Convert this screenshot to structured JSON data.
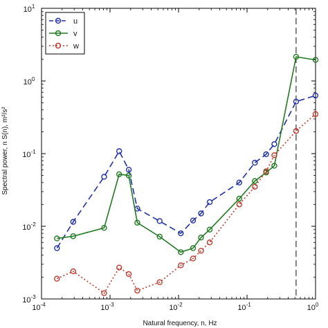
{
  "chart_data": {
    "type": "line",
    "title": "",
    "xlabel": "Natural frequency, n, Hz",
    "ylabel": "Spectral power, n S(n), m²/s²",
    "xscale": "log",
    "yscale": "log",
    "xlim": [
      0.0001,
      1
    ],
    "ylim": [
      0.001,
      10
    ],
    "x_ticks": [
      {
        "base": "10",
        "exp": "-4",
        "value": 0.0001
      },
      {
        "base": "10",
        "exp": "-3",
        "value": 0.001
      },
      {
        "base": "10",
        "exp": "-2",
        "value": 0.01
      },
      {
        "base": "10",
        "exp": "-1",
        "value": 0.1
      },
      {
        "base": "10",
        "exp": "0",
        "value": 1
      }
    ],
    "y_ticks": [
      {
        "base": "10",
        "exp": "-3",
        "value": 0.001
      },
      {
        "base": "10",
        "exp": "-2",
        "value": 0.01
      },
      {
        "base": "10",
        "exp": "-1",
        "value": 0.1
      },
      {
        "base": "10",
        "exp": "0",
        "value": 1
      },
      {
        "base": "10",
        "exp": "1",
        "value": 10
      }
    ],
    "grid": false,
    "legend_position": "top-left",
    "vertical_reference_line": {
      "x": 0.52,
      "style": "dashed",
      "color": "#444444"
    },
    "series": [
      {
        "name": "u",
        "color": "#1f2fa8",
        "line_style": "dashed",
        "marker": "circle",
        "x": [
          0.000168,
          0.00029,
          0.00082,
          0.00136,
          0.00188,
          0.0025,
          0.0053,
          0.0108,
          0.0163,
          0.0213,
          0.0285,
          0.077,
          0.13,
          0.19,
          0.25,
          0.52,
          1.0
        ],
        "y": [
          0.005,
          0.0115,
          0.048,
          0.108,
          0.06,
          0.0175,
          0.0118,
          0.008,
          0.012,
          0.015,
          0.0215,
          0.04,
          0.075,
          0.098,
          0.135,
          0.52,
          0.63
        ]
      },
      {
        "name": "v",
        "color": "#1e7a1e",
        "line_style": "solid",
        "marker": "circle",
        "x": [
          0.000168,
          0.00029,
          0.00082,
          0.00136,
          0.00188,
          0.0025,
          0.0053,
          0.0108,
          0.0163,
          0.0213,
          0.0285,
          0.077,
          0.13,
          0.19,
          0.25,
          0.52,
          1.0
        ],
        "y": [
          0.0068,
          0.0073,
          0.0095,
          0.052,
          0.05,
          0.0112,
          0.0072,
          0.0044,
          0.005,
          0.007,
          0.009,
          0.024,
          0.042,
          0.055,
          0.068,
          2.15,
          1.95
        ]
      },
      {
        "name": "w",
        "color": "#c0392b",
        "line_style": "dotted",
        "marker": "circle",
        "x": [
          0.000168,
          0.00029,
          0.00082,
          0.00136,
          0.00188,
          0.0025,
          0.0053,
          0.0108,
          0.0163,
          0.0213,
          0.0285,
          0.077,
          0.13,
          0.19,
          0.25,
          0.52,
          1.0
        ],
        "y": [
          0.0019,
          0.0024,
          0.0012,
          0.0027,
          0.0022,
          0.0013,
          0.0017,
          0.0029,
          0.0036,
          0.0046,
          0.006,
          0.02,
          0.035,
          0.057,
          0.095,
          0.205,
          0.35
        ]
      }
    ]
  }
}
